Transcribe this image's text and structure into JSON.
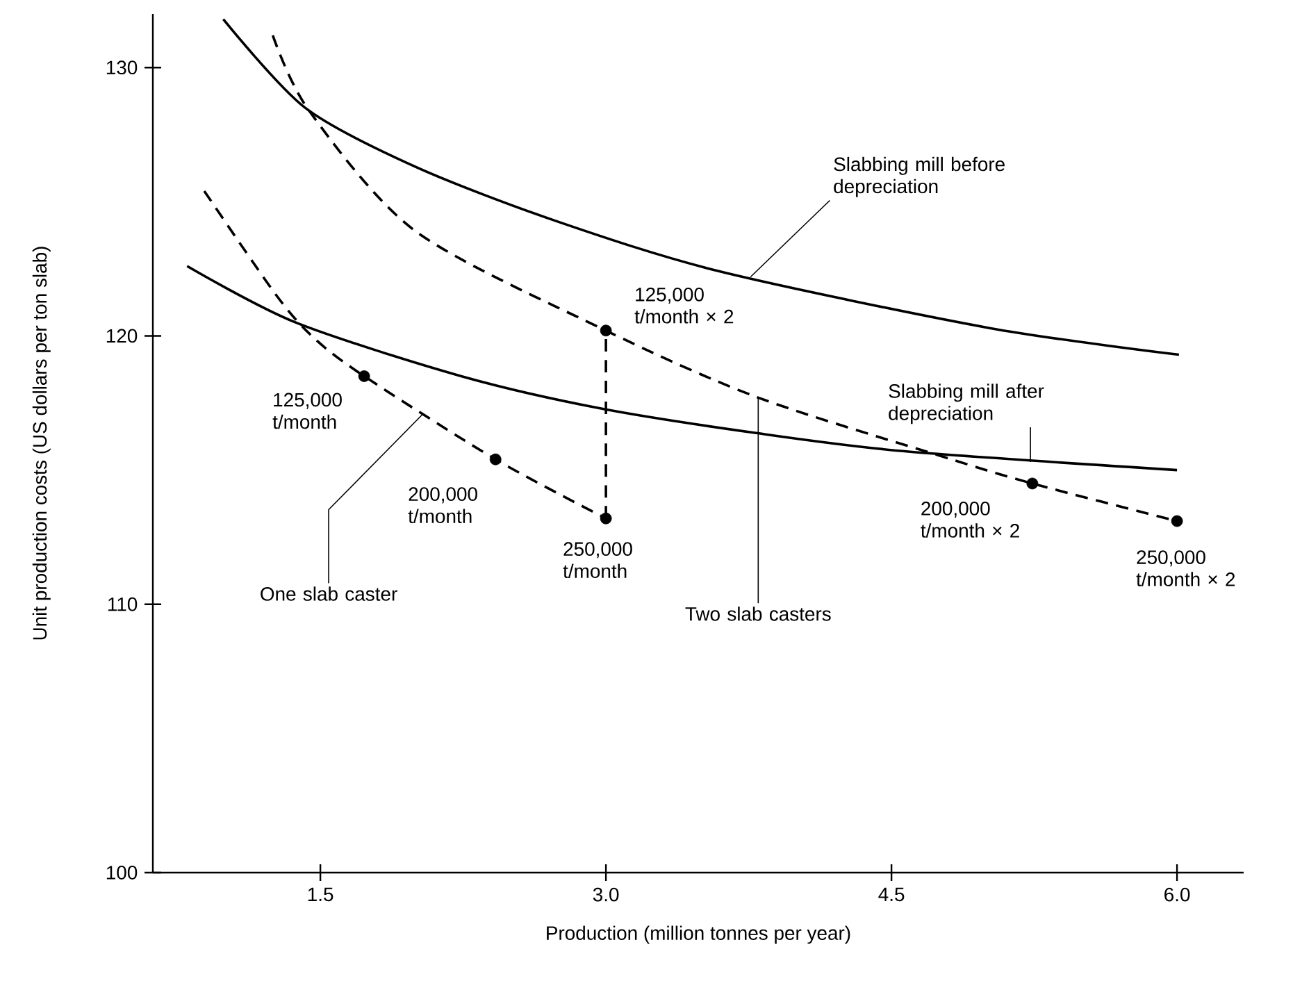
{
  "chart_data": {
    "type": "line",
    "xlabel": "Production (million tonnes per year)",
    "ylabel": "Unit production costs (US dollars per ton slab)",
    "xlim": [
      0.62,
      6.35
    ],
    "ylim": [
      100,
      132
    ],
    "xticks": [
      1.5,
      {
        "value": 3,
        "label": "3.0"
      },
      4.5,
      {
        "value": 6,
        "label": "6.0"
      }
    ],
    "yticks": [
      100,
      110,
      120,
      130
    ],
    "series": [
      {
        "color": "#000000",
        "line_style": "solid",
        "x": [
          0.99,
          1.42,
          2.0,
          2.73,
          3.6,
          5.01,
          6.01
        ],
        "values": [
          131.8,
          128.5,
          126.3,
          124.3,
          122.4,
          120.3,
          119.3
        ]
      },
      {
        "color": "#000000",
        "line_style": "solid",
        "x": [
          0.8,
          1.37,
          2.24,
          2.97,
          3.77,
          4.57,
          6.0
        ],
        "values": [
          122.6,
          120.5,
          118.5,
          117.3,
          116.4,
          115.7,
          115.0
        ]
      },
      {
        "color": "#000000",
        "line_style": "dashed",
        "x": [
          0.89,
          1.27,
          1.47,
          1.73,
          2.42,
          3.0
        ],
        "values": [
          125.4,
          121.5,
          119.9,
          118.5,
          115.4,
          113.2
        ]
      },
      {
        "color": "#000000",
        "line_style": "dashed",
        "x": [
          1.25,
          1.44,
          2.0,
          3.0,
          3.8,
          4.77,
          5.24,
          6.0
        ],
        "values": [
          131.2,
          128.4,
          123.9,
          120.2,
          117.7,
          115.5,
          114.5,
          113.1
        ]
      },
      {
        "color": "#000000",
        "line_style": "dashed",
        "x": [
          3.0,
          3.0
        ],
        "values": [
          113.2,
          120.2
        ]
      },
      {
        "type": "scatter",
        "color": "#000000",
        "marker": "circle",
        "x": [
          1.73,
          2.42,
          3.0
        ],
        "values": [
          118.5,
          115.4,
          113.2
        ]
      },
      {
        "type": "scatter",
        "color": "#000000",
        "marker": "circle",
        "x": [
          3.0,
          5.24,
          6.0
        ],
        "values": [
          120.2,
          114.5,
          113.1
        ]
      }
    ],
    "annotations": [
      {
        "text": "Slabbing mill before depreciation",
        "x": 3.76,
        "y": 122.2
      },
      {
        "text": "Slabbing mill after depreciation",
        "x": 5.23,
        "y": 115.3
      },
      {
        "text": "One slab caster",
        "x": 2.04,
        "y": 117.1
      },
      {
        "text": "Two slab casters",
        "x": 3.8,
        "y": 117.7
      },
      {
        "text": "125,000 t/month",
        "x": 1.73,
        "y": 118.5
      },
      {
        "text": "200,000 t/month",
        "x": 2.42,
        "y": 115.4
      },
      {
        "text": "250,000 t/month",
        "x": 3.0,
        "y": 113.2
      },
      {
        "text": "125,000 t/month × 2",
        "x": 3.0,
        "y": 120.2
      },
      {
        "text": "200,000 t/month × 2",
        "x": 5.24,
        "y": 114.5
      },
      {
        "text": "250,000 t/month × 2",
        "x": 6.0,
        "y": 113.1
      }
    ]
  }
}
